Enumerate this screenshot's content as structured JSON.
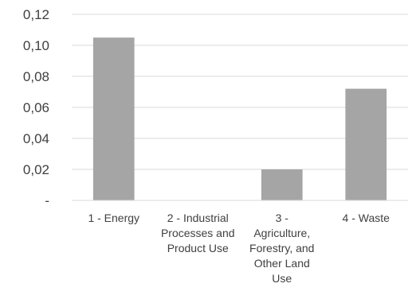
{
  "chart_data": {
    "type": "bar",
    "categories": [
      [
        "1 - Energy"
      ],
      [
        "2 - Industrial",
        "Processes and",
        "Product Use"
      ],
      [
        "3 -",
        "Agriculture,",
        "Forestry, and",
        "Other Land",
        "Use"
      ],
      [
        "4 - Waste"
      ]
    ],
    "values": [
      0.105,
      0,
      0.02,
      0.072
    ],
    "y_ticks": [
      0,
      0.02,
      0.04,
      0.06,
      0.08,
      0.1,
      0.12
    ],
    "y_tick_labels": [
      "-",
      "0,02",
      "0,04",
      "0,06",
      "0,08",
      "0,10",
      "0,12"
    ],
    "ylim": [
      0,
      0.12
    ],
    "grid": true,
    "bar_color": "#a5a5a5",
    "grid_color": "#d9d9d9",
    "title": "",
    "xlabel": "",
    "ylabel": ""
  }
}
